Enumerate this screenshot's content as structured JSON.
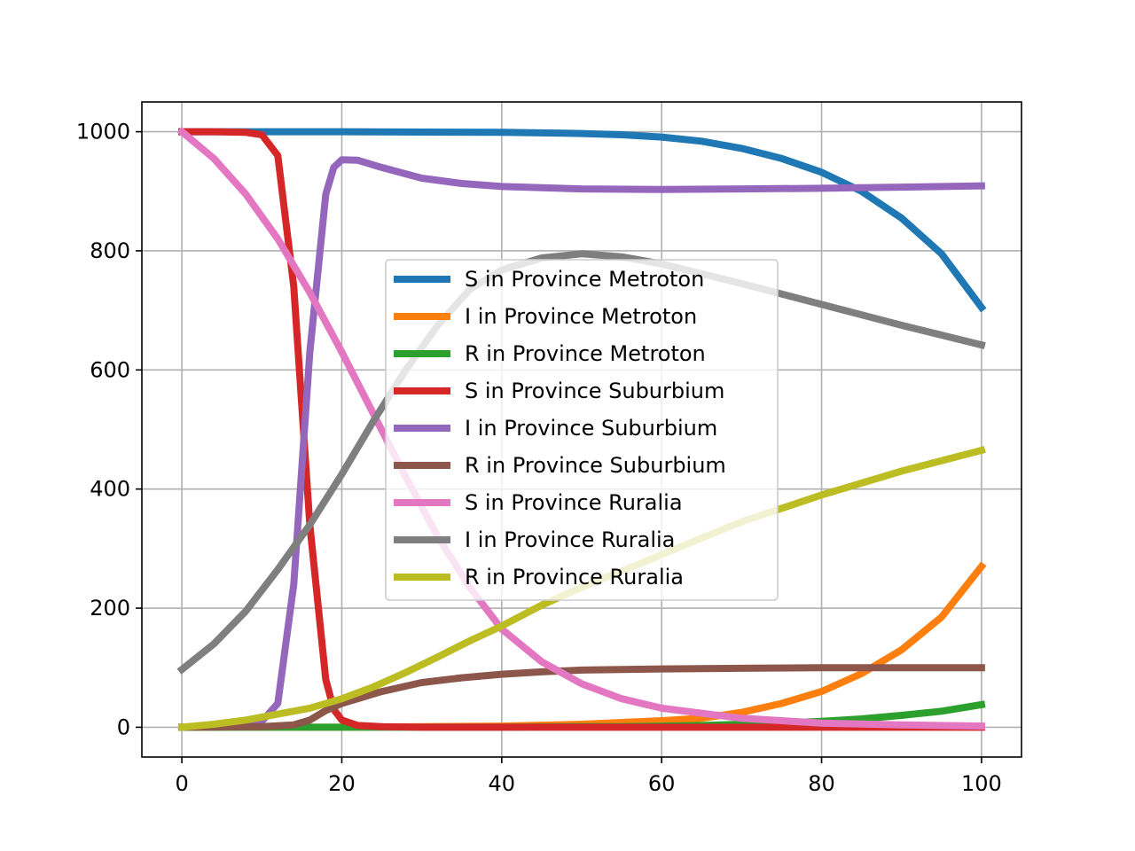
{
  "chart_data": {
    "type": "line",
    "title": "",
    "xlabel": "",
    "ylabel": "",
    "xlim": [
      -5,
      105
    ],
    "ylim": [
      -50,
      1050
    ],
    "grid": true,
    "legend_position": "center",
    "x_ticks": [
      0,
      20,
      40,
      60,
      80,
      100
    ],
    "y_ticks": [
      0,
      200,
      400,
      600,
      800,
      1000
    ],
    "series": [
      {
        "name": "S in Province Metroton",
        "color": "#1f77b4",
        "points": [
          [
            0,
            1000
          ],
          [
            20,
            1000
          ],
          [
            40,
            999
          ],
          [
            50,
            997
          ],
          [
            55,
            995
          ],
          [
            60,
            991
          ],
          [
            65,
            984
          ],
          [
            70,
            972
          ],
          [
            75,
            955
          ],
          [
            80,
            932
          ],
          [
            85,
            900
          ],
          [
            90,
            855
          ],
          [
            95,
            795
          ],
          [
            100,
            705
          ]
        ]
      },
      {
        "name": "I in Province Metroton",
        "color": "#ff7f0e",
        "points": [
          [
            0,
            0
          ],
          [
            20,
            0
          ],
          [
            40,
            2
          ],
          [
            50,
            5
          ],
          [
            55,
            8
          ],
          [
            60,
            11
          ],
          [
            65,
            15
          ],
          [
            70,
            25
          ],
          [
            75,
            40
          ],
          [
            80,
            60
          ],
          [
            85,
            90
          ],
          [
            90,
            130
          ],
          [
            95,
            185
          ],
          [
            100,
            270
          ]
        ]
      },
      {
        "name": "R in Province Metroton",
        "color": "#2ca02c",
        "points": [
          [
            0,
            0
          ],
          [
            20,
            0
          ],
          [
            40,
            0
          ],
          [
            50,
            1
          ],
          [
            55,
            1
          ],
          [
            60,
            2
          ],
          [
            65,
            3
          ],
          [
            70,
            5
          ],
          [
            75,
            7
          ],
          [
            80,
            10
          ],
          [
            85,
            14
          ],
          [
            90,
            20
          ],
          [
            95,
            27
          ],
          [
            100,
            38
          ]
        ]
      },
      {
        "name": "S in Province Suburbium",
        "color": "#d62728",
        "points": [
          [
            0,
            1000
          ],
          [
            4,
            1000
          ],
          [
            8,
            999
          ],
          [
            10,
            995
          ],
          [
            12,
            960
          ],
          [
            14,
            740
          ],
          [
            16,
            340
          ],
          [
            18,
            80
          ],
          [
            19,
            30
          ],
          [
            20,
            12
          ],
          [
            22,
            3
          ],
          [
            25,
            1
          ],
          [
            30,
            0
          ],
          [
            100,
            0
          ]
        ]
      },
      {
        "name": "I in Province Suburbium",
        "color": "#9467bd",
        "points": [
          [
            0,
            0
          ],
          [
            6,
            2
          ],
          [
            10,
            10
          ],
          [
            12,
            40
          ],
          [
            14,
            240
          ],
          [
            16,
            630
          ],
          [
            18,
            895
          ],
          [
            19,
            940
          ],
          [
            20,
            953
          ],
          [
            22,
            952
          ],
          [
            25,
            940
          ],
          [
            30,
            922
          ],
          [
            35,
            913
          ],
          [
            40,
            908
          ],
          [
            50,
            904
          ],
          [
            60,
            903
          ],
          [
            70,
            904
          ],
          [
            80,
            905
          ],
          [
            90,
            907
          ],
          [
            100,
            909
          ]
        ]
      },
      {
        "name": "R in Province Suburbium",
        "color": "#8c564b",
        "points": [
          [
            0,
            0
          ],
          [
            10,
            1
          ],
          [
            14,
            4
          ],
          [
            16,
            12
          ],
          [
            18,
            28
          ],
          [
            20,
            40
          ],
          [
            22,
            48
          ],
          [
            25,
            60
          ],
          [
            30,
            75
          ],
          [
            35,
            83
          ],
          [
            40,
            89
          ],
          [
            45,
            93
          ],
          [
            50,
            96
          ],
          [
            60,
            98
          ],
          [
            70,
            99
          ],
          [
            80,
            100
          ],
          [
            100,
            100
          ]
        ]
      },
      {
        "name": "S in Province Ruralia",
        "color": "#e377c2",
        "points": [
          [
            0,
            1000
          ],
          [
            4,
            955
          ],
          [
            8,
            895
          ],
          [
            12,
            820
          ],
          [
            16,
            730
          ],
          [
            20,
            630
          ],
          [
            24,
            525
          ],
          [
            28,
            420
          ],
          [
            32,
            320
          ],
          [
            36,
            235
          ],
          [
            40,
            165
          ],
          [
            45,
            110
          ],
          [
            50,
            73
          ],
          [
            55,
            48
          ],
          [
            60,
            32
          ],
          [
            70,
            15
          ],
          [
            80,
            7
          ],
          [
            90,
            4
          ],
          [
            100,
            2
          ]
        ]
      },
      {
        "name": "I in Province Ruralia",
        "color": "#7f7f7f",
        "points": [
          [
            0,
            97
          ],
          [
            4,
            140
          ],
          [
            8,
            195
          ],
          [
            12,
            265
          ],
          [
            16,
            340
          ],
          [
            20,
            425
          ],
          [
            24,
            515
          ],
          [
            28,
            600
          ],
          [
            32,
            675
          ],
          [
            36,
            735
          ],
          [
            40,
            768
          ],
          [
            45,
            788
          ],
          [
            50,
            795
          ],
          [
            55,
            790
          ],
          [
            60,
            778
          ],
          [
            70,
            745
          ],
          [
            80,
            710
          ],
          [
            90,
            675
          ],
          [
            100,
            642
          ]
        ]
      },
      {
        "name": "R in Province Ruralia",
        "color": "#bcbd22",
        "points": [
          [
            0,
            0
          ],
          [
            4,
            5
          ],
          [
            8,
            12
          ],
          [
            12,
            22
          ],
          [
            16,
            32
          ],
          [
            20,
            48
          ],
          [
            24,
            68
          ],
          [
            28,
            92
          ],
          [
            32,
            118
          ],
          [
            36,
            145
          ],
          [
            40,
            170
          ],
          [
            45,
            205
          ],
          [
            50,
            235
          ],
          [
            55,
            262
          ],
          [
            60,
            290
          ],
          [
            70,
            345
          ],
          [
            80,
            390
          ],
          [
            90,
            430
          ],
          [
            100,
            465
          ]
        ]
      }
    ]
  }
}
